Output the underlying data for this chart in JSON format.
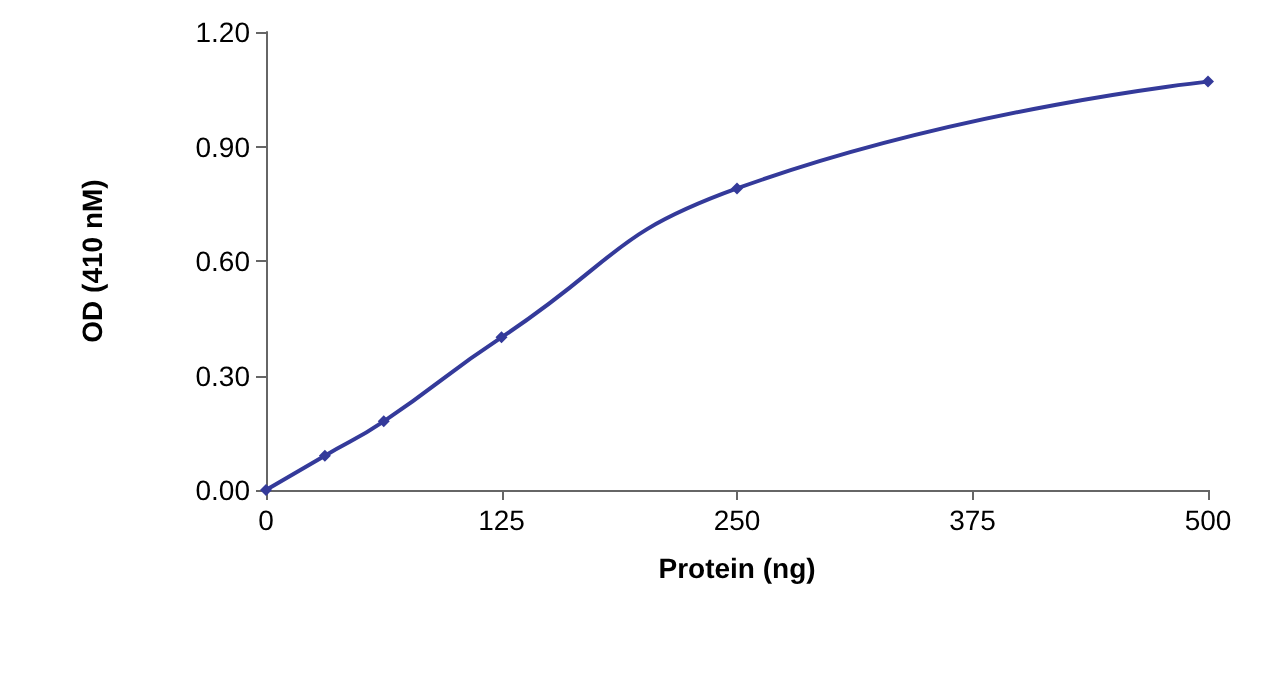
{
  "chart_data": {
    "type": "line",
    "xlabel": "Protein (ng)",
    "ylabel": "OD (410 nM)",
    "x": [
      0,
      31.25,
      62.5,
      125,
      250,
      500
    ],
    "series": [
      {
        "color": "#343a9a",
        "values": [
          0,
          0.09,
          0.18,
          0.4,
          0.79,
          1.07
        ]
      }
    ],
    "xlim": [
      0,
      500
    ],
    "xticks": [
      0,
      125,
      250,
      375,
      500
    ],
    "ylim": [
      0,
      1.2
    ],
    "yticks": [
      {
        "value": 0,
        "label": "0.00"
      },
      {
        "value": 0.3,
        "label": "0.30"
      },
      {
        "value": 0.6,
        "label": "0.60"
      },
      {
        "value": 0.9,
        "label": "0.90"
      },
      {
        "value": 1.2,
        "label": "1.20"
      }
    ],
    "grid": false,
    "marker": "diamond",
    "line_style": "solid"
  }
}
